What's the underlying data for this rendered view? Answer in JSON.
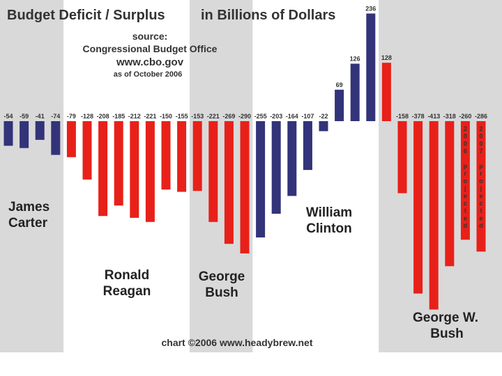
{
  "chart_data": {
    "type": "bar",
    "title_left": "Budget Deficit / Surplus",
    "title_right": "in Billions of Dollars",
    "source": [
      "source:",
      "Congressional Budget Office",
      "www.cbo.gov",
      "as of October 2006"
    ],
    "credit": "chart ©2006 www.headybrew.net",
    "values": [
      -54,
      -59,
      -41,
      -74,
      -79,
      -128,
      -208,
      -185,
      -212,
      -221,
      -150,
      -155,
      -153,
      -221,
      -269,
      -290,
      -255,
      -203,
      -164,
      -107,
      -22,
      69,
      126,
      236,
      128,
      -158,
      -378,
      -413,
      -318,
      -260,
      -286
    ],
    "parties": [
      "D",
      "D",
      "D",
      "D",
      "R",
      "R",
      "R",
      "R",
      "R",
      "R",
      "R",
      "R",
      "R",
      "R",
      "R",
      "R",
      "D",
      "D",
      "D",
      "D",
      "D",
      "D",
      "D",
      "D",
      "R",
      "R",
      "R",
      "R",
      "R",
      "R",
      "R"
    ],
    "projected_labels": [
      "2006 projected",
      "2007 projected"
    ],
    "presidents": [
      {
        "name": [
          "James",
          "Carter"
        ]
      },
      {
        "name": [
          "Ronald",
          "Reagan"
        ]
      },
      {
        "name": [
          "George",
          "Bush"
        ]
      },
      {
        "name": [
          "William",
          "Clinton"
        ]
      },
      {
        "name": [
          "George W.",
          "Bush"
        ]
      }
    ],
    "colors": {
      "D": "#33337a",
      "R": "#e8201a",
      "shade": "#d9d9d9"
    }
  }
}
